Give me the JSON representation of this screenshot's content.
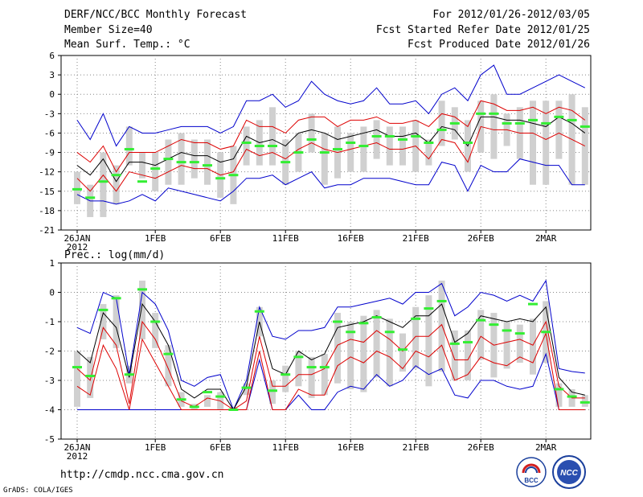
{
  "header": {
    "title": "DERF/NCC/BCC Monthly Forecast",
    "member_size": "Member Size=40",
    "variable1": "Mean Surf. Temp.: °C",
    "period": "For 2012/01/26-2012/03/05",
    "start": "Fcst Started Refer Date 2012/01/25",
    "produced": "Fcst Produced Date 2012/01/26"
  },
  "footer": {
    "url": "http://cmdp.ncc.cma.gov.cn",
    "grads": "GrADS: COLA/IGES"
  },
  "logos": {
    "bcc": "BCC",
    "ncc": "NCC"
  },
  "x_tick_labels": [
    "26JAN",
    "1FEB",
    "6FEB",
    "11FEB",
    "16FEB",
    "21FEB",
    "26FEB",
    "2MAR"
  ],
  "x_year_label": "2012",
  "colors": {
    "envelope": "#0000cc",
    "mean": "#000000",
    "sd": "#dd0000",
    "box": "#d0d0d0",
    "median": "#33ee33"
  },
  "chart_data": [
    {
      "type": "line",
      "title": "Mean Surf. Temp.: °C",
      "x": [
        "26JAN",
        "27JAN",
        "28JAN",
        "29JAN",
        "30JAN",
        "31JAN",
        "1FEB",
        "2FEB",
        "3FEB",
        "4FEB",
        "5FEB",
        "6FEB",
        "7FEB",
        "8FEB",
        "9FEB",
        "10FEB",
        "11FEB",
        "12FEB",
        "13FEB",
        "14FEB",
        "15FEB",
        "16FEB",
        "17FEB",
        "18FEB",
        "19FEB",
        "20FEB",
        "21FEB",
        "22FEB",
        "23FEB",
        "24FEB",
        "25FEB",
        "26FEB",
        "27FEB",
        "28FEB",
        "29FEB",
        "1MAR",
        "2MAR",
        "3MAR",
        "4MAR",
        "5MAR"
      ],
      "ylim": [
        -21,
        6
      ],
      "yticks": [
        6,
        3,
        0,
        -3,
        -6,
        -9,
        -12,
        -15,
        -18,
        -21
      ],
      "series": [
        {
          "name": "max",
          "values": [
            -4,
            -7,
            -3,
            -8,
            -5,
            -6,
            -6,
            -5.5,
            -5,
            -5,
            -5,
            -6,
            -5,
            -1,
            -1,
            0,
            -2,
            -1,
            2,
            0,
            -1,
            -1.5,
            -1,
            1,
            -1.5,
            -1.5,
            -1,
            -3,
            0,
            1,
            -1,
            3,
            4.5,
            0,
            0,
            1,
            2,
            3,
            2,
            1
          ]
        },
        {
          "name": "sd_upper",
          "values": [
            -9,
            -10.5,
            -8,
            -12,
            -9,
            -9,
            -9,
            -8,
            -7,
            -7.5,
            -7.5,
            -8.5,
            -8,
            -4,
            -5,
            -5,
            -6,
            -4,
            -3.5,
            -3.5,
            -5,
            -4,
            -4,
            -3.5,
            -4.5,
            -4.5,
            -4,
            -5,
            -3,
            -3.5,
            -5,
            -1,
            -1.5,
            -2.5,
            -2.5,
            -2,
            -3,
            -2,
            -2.5,
            -4
          ]
        },
        {
          "name": "mean",
          "values": [
            -11,
            -12.5,
            -10,
            -13.5,
            -10.5,
            -10.5,
            -11,
            -10,
            -9,
            -9.5,
            -9.5,
            -10.5,
            -10,
            -6.5,
            -7.5,
            -7,
            -8,
            -6,
            -5.5,
            -6,
            -7,
            -6.5,
            -6,
            -5.5,
            -6.5,
            -6.5,
            -6,
            -7.5,
            -5,
            -5.5,
            -8,
            -3.5,
            -3.5,
            -4,
            -4,
            -4.5,
            -5,
            -3.5,
            -4.5,
            -6
          ]
        },
        {
          "name": "sd_lower",
          "values": [
            -13,
            -15,
            -12.5,
            -15,
            -12,
            -12.5,
            -13,
            -12,
            -11,
            -11.5,
            -11.5,
            -12.5,
            -12,
            -8.5,
            -9.5,
            -9,
            -10,
            -8.5,
            -7.5,
            -8.5,
            -9,
            -8.5,
            -8,
            -7.5,
            -8.5,
            -8.5,
            -8,
            -10,
            -7,
            -7.5,
            -10.5,
            -5,
            -5.5,
            -5.5,
            -6,
            -6,
            -7,
            -6,
            -7,
            -8
          ]
        },
        {
          "name": "min",
          "values": [
            -15.5,
            -16.5,
            -16.5,
            -17,
            -16.5,
            -15.5,
            -16.5,
            -14.5,
            -15,
            -15.5,
            -16,
            -16.5,
            -15,
            -13,
            -13,
            -12.5,
            -14,
            -13,
            -12,
            -14.5,
            -14,
            -14,
            -13,
            -13,
            -13,
            -13.5,
            -14,
            -14,
            -10.5,
            -11,
            -15,
            -11,
            -12,
            -12,
            -10,
            -10.5,
            -11,
            -11,
            -14,
            -14
          ]
        },
        {
          "name": "box_top",
          "values": [
            -12,
            -14,
            -9,
            -11,
            -5,
            -9,
            -9,
            -7,
            -6,
            -7,
            -7,
            -9,
            -8,
            -5,
            -4,
            -2,
            -7,
            -6,
            -3,
            -6,
            -5,
            -6,
            -5,
            -4,
            -5,
            -5,
            -4,
            -7,
            -1,
            -2,
            -4,
            -1,
            0,
            -3,
            -2,
            -1,
            -1,
            -1,
            0,
            -2
          ]
        },
        {
          "name": "box_bottom",
          "values": [
            -17,
            -19,
            -19,
            -17,
            -11,
            -13,
            -15,
            -14,
            -14,
            -13,
            -14,
            -16,
            -17,
            -11,
            -11,
            -11,
            -14,
            -12,
            -9,
            -14,
            -13,
            -12,
            -12,
            -10,
            -11,
            -11,
            -12,
            -11,
            -8,
            -7,
            -12,
            -9,
            -10,
            -8,
            -10,
            -14,
            -14,
            -10,
            -14,
            -14
          ]
        },
        {
          "name": "median",
          "values": [
            -14.7,
            -16,
            -13.5,
            -12.5,
            -8.5,
            -13.5,
            -11.5,
            -10,
            -10.5,
            -10.5,
            -11,
            -13,
            -12.5,
            -7.5,
            -8,
            -8,
            -10.5,
            -9,
            -7,
            -9,
            -8.5,
            -7.5,
            -8,
            -6.5,
            -6.5,
            -7,
            -6.5,
            -7.5,
            -5.5,
            -4.5,
            -7.5,
            -3,
            -3,
            -4.5,
            -4.5,
            -4,
            -4.5,
            -3.5,
            -4,
            -5
          ]
        }
      ]
    },
    {
      "type": "line",
      "title": "Prec.: log(mm/d)",
      "x": [
        "26JAN",
        "27JAN",
        "28JAN",
        "29JAN",
        "30JAN",
        "31JAN",
        "1FEB",
        "2FEB",
        "3FEB",
        "4FEB",
        "5FEB",
        "6FEB",
        "7FEB",
        "8FEB",
        "9FEB",
        "10FEB",
        "11FEB",
        "12FEB",
        "13FEB",
        "14FEB",
        "15FEB",
        "16FEB",
        "17FEB",
        "18FEB",
        "19FEB",
        "20FEB",
        "21FEB",
        "22FEB",
        "23FEB",
        "24FEB",
        "25FEB",
        "26FEB",
        "27FEB",
        "28FEB",
        "29FEB",
        "1MAR",
        "2MAR",
        "3MAR",
        "4MAR",
        "5MAR"
      ],
      "ylim": [
        -5,
        1
      ],
      "yticks": [
        1,
        0,
        -1,
        -2,
        -3,
        -4,
        -5
      ],
      "series": [
        {
          "name": "max",
          "values": [
            -1.2,
            -1.4,
            0,
            -0.2,
            -2.8,
            0,
            -0.4,
            -1.3,
            -3,
            -3.2,
            -2.9,
            -2.8,
            -4,
            -3,
            -0.5,
            -1.5,
            -1.6,
            -1.3,
            -1.3,
            -1.2,
            -0.5,
            -0.5,
            -0.4,
            -0.3,
            -0.2,
            -0.4,
            0,
            0,
            0.3,
            -0.8,
            -0.5,
            0,
            -0.1,
            -0.3,
            -0.1,
            -0.3,
            0.4,
            -2.6,
            -2.7,
            -2.75
          ]
        },
        {
          "name": "sd_upper",
          "values": [
            -2,
            -2.4,
            -0.7,
            -1.2,
            -2.9,
            -0.4,
            -1,
            -1.8,
            -3.3,
            -3.6,
            -3.3,
            -3.3,
            -4,
            -3.2,
            -1,
            -2.6,
            -2.8,
            -2,
            -2.3,
            -2.1,
            -1.2,
            -1.1,
            -1,
            -0.8,
            -1,
            -1.2,
            -0.8,
            -0.8,
            -0.4,
            -1.7,
            -1.4,
            -0.8,
            -0.9,
            -1,
            -0.9,
            -1,
            -0.5,
            -2.9,
            -3.4,
            -3.5
          ]
        },
        {
          "name": "sd_mid",
          "values": [
            -2.6,
            -3,
            -1.2,
            -1.8,
            -3.8,
            -1,
            -1.6,
            -2.6,
            -3.7,
            -3.9,
            -3.6,
            -3.7,
            -4,
            -3.7,
            -1.5,
            -3.2,
            -3.2,
            -2.8,
            -2.8,
            -2.6,
            -1.8,
            -1.6,
            -1.7,
            -1.3,
            -1.6,
            -2,
            -1.5,
            -1.5,
            -1.1,
            -2.3,
            -2.3,
            -1.5,
            -1.8,
            -1.7,
            -1.6,
            -1.8,
            -1,
            -3.2,
            -3.6,
            -3.6
          ]
        },
        {
          "name": "sd_lower",
          "values": [
            -3.2,
            -3.5,
            -1.8,
            -2.6,
            -4,
            -1.6,
            -2.4,
            -3.2,
            -4,
            -4,
            -4,
            -4,
            -4,
            -4,
            -2,
            -4,
            -4,
            -3.3,
            -3.5,
            -3.5,
            -2.5,
            -2.2,
            -2.4,
            -2,
            -2.2,
            -2.6,
            -2,
            -2.2,
            -1.8,
            -3,
            -2.8,
            -2.2,
            -2.4,
            -2.5,
            -2.2,
            -2.4,
            -1.4,
            -4,
            -4,
            -4
          ]
        },
        {
          "name": "min",
          "values": [
            -4,
            -4,
            -4,
            -4,
            -4,
            -4,
            -4,
            -4,
            -4,
            -4,
            -4,
            -4,
            -4,
            -4,
            -2.3,
            -4,
            -4,
            -3.5,
            -4,
            -4,
            -3.4,
            -3.2,
            -3.3,
            -2.8,
            -3.2,
            -3,
            -2.5,
            -2.8,
            -2.6,
            -3.5,
            -3.6,
            -3,
            -3,
            -3.2,
            -3.3,
            -3.2,
            -2.1,
            -4,
            -4,
            -4
          ]
        },
        {
          "name": "box_top",
          "values": [
            -2,
            -2.2,
            -0.4,
            -0.1,
            -2.5,
            0.4,
            -0.7,
            -1.8,
            -3.4,
            -3.8,
            -3.5,
            -3.4,
            -3.9,
            -3.1,
            -0.5,
            -3,
            -2.5,
            -2,
            -2.2,
            -2.1,
            -0.7,
            -1,
            -0.8,
            -0.6,
            -0.9,
            -1.4,
            -0.5,
            -0.1,
            0.4,
            -1.3,
            -1.3,
            -0.6,
            -0.7,
            -1,
            -1.1,
            -0.9,
            -0.3,
            -3.1,
            -3.3,
            -3.5
          ]
        },
        {
          "name": "box_bottom",
          "values": [
            -3.9,
            -3.6,
            -1.6,
            -1.9,
            -3.1,
            -1.6,
            -1.9,
            -3.2,
            -3.9,
            -4,
            -3.9,
            -4,
            -4,
            -3.5,
            -1.5,
            -3.8,
            -3.4,
            -3.2,
            -3.6,
            -3.5,
            -3.1,
            -3.3,
            -3.4,
            -2.9,
            -3.2,
            -2.7,
            -2.6,
            -3.2,
            -2.7,
            -3,
            -3,
            -2.3,
            -2.9,
            -2.6,
            -2.4,
            -2.8,
            -2.4,
            -3.9,
            -3.9,
            -3.9
          ]
        },
        {
          "name": "median",
          "values": [
            -2.55,
            -2.85,
            -0.6,
            -0.2,
            -2.8,
            0.1,
            -1,
            -2.1,
            -3.65,
            -3.9,
            -3.4,
            -3.55,
            -4,
            -3.25,
            -0.65,
            -3.35,
            -2.8,
            -2.2,
            -2.55,
            -2.55,
            -1,
            -1.35,
            -1.05,
            -0.85,
            -1.35,
            -1.95,
            -0.9,
            -0.55,
            -0.3,
            -1.75,
            -1.7,
            -0.95,
            -1.1,
            -1.3,
            -1.4,
            -0.4,
            -1.35,
            -3.3,
            -3.55,
            -3.75
          ]
        }
      ]
    }
  ]
}
